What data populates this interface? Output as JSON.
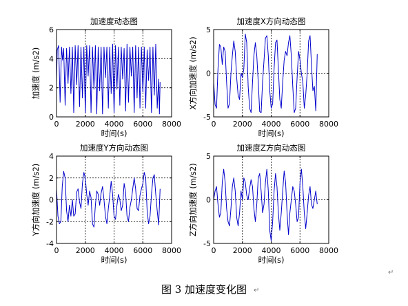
{
  "figure": {
    "caption": "图 3  加速度变化图",
    "paragraph_mark": "↵"
  },
  "colors": {
    "line": "#0000cc",
    "axis": "#000000",
    "grid": "#000000",
    "background": "#ffffff"
  },
  "chart_data": [
    {
      "type": "line",
      "title": "加速度动态图",
      "xlabel": "时间(s)",
      "ylabel": "加速度 (m/s2)",
      "xlim": [
        0,
        8000
      ],
      "ylim": [
        0,
        6
      ],
      "xticks": [
        0,
        2000,
        4000,
        6000,
        8000
      ],
      "xtick_labels": [
        "0",
        "2000",
        "4000",
        "6000",
        "8000"
      ],
      "yticks": [
        0,
        2,
        4,
        6
      ],
      "ytick_labels": [
        "0",
        "2",
        "4",
        "6"
      ],
      "grid": true,
      "grid_style": "dashed",
      "series": [
        {
          "x": [
            0,
            50,
            150,
            250,
            350,
            420,
            500,
            600,
            700,
            800,
            900,
            1000,
            1100,
            1200,
            1300,
            1400,
            1500,
            1600,
            1700,
            1800,
            1900,
            2000,
            2100,
            2200,
            2300,
            2400,
            2500,
            2600,
            2700,
            2800,
            2900,
            3000,
            3100,
            3200,
            3300,
            3400,
            3500,
            3600,
            3700,
            3800,
            3900,
            4000,
            4100,
            4200,
            4300,
            4400,
            4500,
            4600,
            4700,
            4800,
            4900,
            5000,
            5100,
            5200,
            5300,
            5400,
            5500,
            5600,
            5700,
            5800,
            5900,
            6000,
            6100,
            6200,
            6300,
            6400,
            6500,
            6600,
            6700,
            6800,
            6900,
            7000,
            7100,
            7150,
            7200
          ],
          "y": [
            2.4,
            4.6,
            4.9,
            1.0,
            4.8,
            3.9,
            4.7,
            0.8,
            4.7,
            2.3,
            4.8,
            1.6,
            4.8,
            0.3,
            4.9,
            2.2,
            4.9,
            0.7,
            4.8,
            1.3,
            4.8,
            0.3,
            4.9,
            2.8,
            4.9,
            0.3,
            4.8,
            1.9,
            4.9,
            0.2,
            4.8,
            1.8,
            4.8,
            0.2,
            4.8,
            2.7,
            4.8,
            0.6,
            4.8,
            1.6,
            5.0,
            0.3,
            4.9,
            1.9,
            4.8,
            0.8,
            4.8,
            2.6,
            4.7,
            0.4,
            5.0,
            1.0,
            4.8,
            2.8,
            4.8,
            0.3,
            4.9,
            1.3,
            4.8,
            0.6,
            4.8,
            1.7,
            4.8,
            0.6,
            4.6,
            2.5,
            4.8,
            0.3,
            4.8,
            1.5,
            5.0,
            0.6,
            2.6,
            0.2,
            2.4
          ]
        }
      ]
    },
    {
      "type": "line",
      "title": "加速度X方向动态图",
      "xlabel": "时间(s)",
      "ylabel": "X方向加速度 (m/s2)",
      "xlim": [
        0,
        8000
      ],
      "ylim": [
        -5,
        5
      ],
      "xticks": [
        0,
        2000,
        4000,
        6000,
        8000
      ],
      "xtick_labels": [
        "0",
        "2000",
        "4000",
        "6000",
        "8000"
      ],
      "yticks": [
        -5,
        0,
        5
      ],
      "ytick_labels": [
        "-5",
        "0",
        "5"
      ],
      "grid": true,
      "grid_style": "dashed",
      "series": [
        {
          "x": [
            0,
            100,
            200,
            300,
            400,
            500,
            600,
            700,
            800,
            900,
            1000,
            1100,
            1200,
            1300,
            1400,
            1500,
            1600,
            1700,
            1800,
            1900,
            2000,
            2100,
            2200,
            2300,
            2400,
            2500,
            2600,
            2700,
            2800,
            2900,
            3000,
            3100,
            3200,
            3300,
            3400,
            3500,
            3600,
            3700,
            3800,
            3900,
            4000,
            4100,
            4200,
            4300,
            4400,
            4500,
            4600,
            4700,
            4800,
            4900,
            5000,
            5100,
            5200,
            5300,
            5400,
            5500,
            5600,
            5700,
            5800,
            5900,
            6000,
            6100,
            6200,
            6300,
            6400,
            6500,
            6600,
            6700,
            6800,
            6900,
            7000,
            7100,
            7200
          ],
          "y": [
            -1.0,
            -3.6,
            -4.0,
            0.5,
            3.3,
            3.0,
            1.0,
            3.0,
            2.5,
            -1.0,
            -4.0,
            -3.5,
            0.0,
            2.0,
            3.7,
            2.5,
            -0.5,
            -2.5,
            -3.0,
            0.0,
            -0.5,
            0.5,
            4.5,
            3.5,
            -1.5,
            -4.0,
            -4.5,
            -1.0,
            2.0,
            3.5,
            2.0,
            -1.0,
            -4.4,
            -4.5,
            -1.0,
            1.5,
            4.0,
            4.3,
            2.0,
            -2.0,
            -4.0,
            -3.5,
            0.5,
            3.5,
            3.8,
            0.5,
            -3.0,
            -4.0,
            -1.0,
            1.5,
            2.5,
            2.0,
            3.5,
            4.3,
            2.0,
            -1.5,
            -4.5,
            -4.0,
            -0.5,
            2.5,
            1.5,
            0.0,
            -1.0,
            -4.0,
            -2.5,
            0.0,
            3.7,
            4.3,
            1.0,
            -2.0,
            -1.5,
            -4.3,
            2.2
          ]
        }
      ]
    },
    {
      "type": "line",
      "title": "加速度Y方向动态图",
      "xlabel": "时间(s)",
      "ylabel": "Y方向加速度 (m/s2)",
      "xlim": [
        0,
        8000
      ],
      "ylim": [
        -4,
        4
      ],
      "xticks": [
        0,
        2000,
        4000,
        6000,
        8000
      ],
      "xtick_labels": [
        "0",
        "2000",
        "4000",
        "6000",
        "8000"
      ],
      "yticks": [
        -4,
        -2,
        0,
        2,
        4
      ],
      "ytick_labels": [
        "-4",
        "-2",
        "0",
        "2",
        "4"
      ],
      "grid": true,
      "grid_style": "dashed",
      "series": [
        {
          "x": [
            0,
            100,
            200,
            300,
            400,
            500,
            600,
            700,
            800,
            900,
            1000,
            1100,
            1200,
            1300,
            1400,
            1500,
            1600,
            1700,
            1800,
            1900,
            2000,
            2100,
            2200,
            2300,
            2400,
            2500,
            2600,
            2700,
            2800,
            2900,
            3000,
            3100,
            3200,
            3300,
            3400,
            3500,
            3600,
            3700,
            3800,
            3900,
            4000,
            4100,
            4200,
            4300,
            4400,
            4500,
            4600,
            4700,
            4800,
            4900,
            5000,
            5100,
            5200,
            5300,
            5400,
            5500,
            5600,
            5700,
            5800,
            5900,
            6000,
            6100,
            6200,
            6300,
            6400,
            6500,
            6600,
            6700,
            6800,
            6900,
            7000,
            7100,
            7200
          ],
          "y": [
            1.0,
            -1.5,
            -2.2,
            -2.0,
            1.2,
            2.6,
            2.0,
            -1.0,
            -2.0,
            -0.5,
            -1.5,
            0.0,
            -1.5,
            -1.3,
            0.7,
            1.0,
            -0.2,
            -0.8,
            1.5,
            2.5,
            2.0,
            0.5,
            -0.5,
            0.8,
            0.2,
            -2.2,
            -2.5,
            -0.5,
            0.8,
            0.5,
            -0.5,
            0.6,
            1.2,
            0.0,
            -1.5,
            -2.2,
            -0.8,
            0.3,
            1.7,
            0.5,
            -1.5,
            -1.8,
            -0.5,
            0.5,
            0.0,
            -1.0,
            -0.5,
            1.5,
            0.7,
            -1.5,
            -2.0,
            -0.7,
            0.0,
            1.0,
            2.0,
            1.0,
            -0.8,
            -1.0,
            0.4,
            1.0,
            1.5,
            2.5,
            2.0,
            -1.0,
            -2.2,
            -1.5,
            0.5,
            2.0,
            2.3,
            0.5,
            -1.0,
            -2.3,
            1.0
          ]
        }
      ]
    },
    {
      "type": "line",
      "title": "加速度Z方向动态图",
      "xlabel": "时间(s)",
      "ylabel": "Z方向加速度 (m/s2)",
      "xlim": [
        0,
        8000
      ],
      "ylim": [
        -5,
        5
      ],
      "xticks": [
        0,
        2000,
        4000,
        6000,
        8000
      ],
      "xtick_labels": [
        "0",
        "2000",
        "4000",
        "6000",
        "8000"
      ],
      "yticks": [
        -5,
        0,
        5
      ],
      "ytick_labels": [
        "-5",
        "0",
        "5"
      ],
      "grid": true,
      "grid_style": "dashed",
      "series": [
        {
          "x": [
            0,
            100,
            200,
            300,
            400,
            500,
            600,
            700,
            800,
            900,
            1000,
            1100,
            1200,
            1300,
            1400,
            1500,
            1600,
            1700,
            1800,
            1900,
            2000,
            2100,
            2200,
            2300,
            2400,
            2500,
            2600,
            2700,
            2800,
            2900,
            3000,
            3100,
            3200,
            3300,
            3400,
            3500,
            3600,
            3700,
            3800,
            3900,
            4000,
            4100,
            4200,
            4300,
            4400,
            4500,
            4600,
            4700,
            4800,
            4900,
            5000,
            5100,
            5200,
            5300,
            5400,
            5500,
            5600,
            5700,
            5800,
            5900,
            6000,
            6100,
            6200,
            6300,
            6400,
            6500,
            6600,
            6700,
            6800,
            6900,
            7000,
            7100,
            7200
          ],
          "y": [
            0.0,
            1.0,
            1.5,
            -0.5,
            -2.0,
            -1.5,
            2.0,
            3.5,
            2.0,
            -1.0,
            -2.5,
            -3.0,
            -1.0,
            1.5,
            2.5,
            1.0,
            -2.0,
            -3.0,
            -1.5,
            1.0,
            0.0,
            2.5,
            2.0,
            0.5,
            0.0,
            1.3,
            2.3,
            1.5,
            -1.0,
            -2.5,
            -0.5,
            2.5,
            3.0,
            1.0,
            -1.5,
            -0.5,
            2.0,
            3.5,
            1.0,
            -3.5,
            -4.7,
            -2.5,
            1.0,
            3.0,
            1.5,
            -1.5,
            -3.5,
            -1.5,
            1.0,
            3.3,
            2.0,
            -1.5,
            -4.0,
            -1.5,
            0.0,
            1.5,
            1.0,
            -0.5,
            -2.5,
            -2.0,
            2.0,
            3.5,
            1.5,
            -1.5,
            -3.3,
            -1.5,
            0.5,
            1.5,
            -0.5,
            -1.0,
            0.0,
            1.0,
            -0.5
          ]
        }
      ]
    }
  ]
}
